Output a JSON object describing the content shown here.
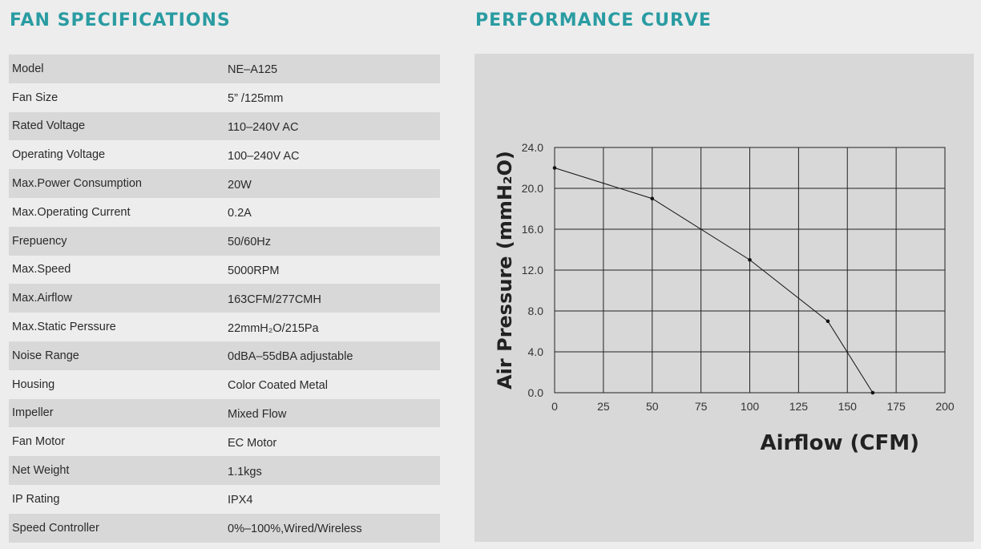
{
  "spec_title": "FAN SPECIFICATIONS",
  "perf_title": "PERFORMANCE CURVE",
  "specs": [
    {
      "label": "Model",
      "value": "NE–A125"
    },
    {
      "label": "Fan Size",
      "value": "5” /125mm"
    },
    {
      "label": "Rated Voltage",
      "value": "110–240V AC"
    },
    {
      "label": "Operating Voltage",
      "value": "100–240V AC"
    },
    {
      "label": "Max.Power Consumption",
      "value": "20W"
    },
    {
      "label": "Max.Operating Current",
      "value": "0.2A"
    },
    {
      "label": "Frepuency",
      "value": "50/60Hz"
    },
    {
      "label": "Max.Speed",
      "value": "5000RPM"
    },
    {
      "label": "Max.Airflow",
      "value": "163CFM/277CMH"
    },
    {
      "label": "Max.Static Perssure",
      "value": "22mmH₂O/215Pa"
    },
    {
      "label": "Noise Range",
      "value": "0dBA–55dBA adjustable"
    },
    {
      "label": "Housing",
      "value": "Color Coated Metal"
    },
    {
      "label": "Impeller",
      "value": "Mixed Flow"
    },
    {
      "label": "Fan Motor",
      "value": "EC Motor"
    },
    {
      "label": "Net Weight",
      "value": "1.1kgs"
    },
    {
      "label": "IP Rating",
      "value": "IPX4"
    },
    {
      "label": "Speed Controller",
      "value": "0%–100%,Wired/Wireless"
    }
  ],
  "chart_data": {
    "type": "line",
    "xlabel": "Airflow (CFM)",
    "ylabel": "Air Pressure (mmH₂O)",
    "xlim": [
      0,
      200
    ],
    "ylim": [
      0,
      24
    ],
    "x_ticks": [
      "0",
      "25",
      "50",
      "75",
      "100",
      "125",
      "150",
      "175",
      "200"
    ],
    "y_ticks": [
      "0.0",
      "4.0",
      "8.0",
      "12.0",
      "16.0",
      "20.0",
      "24.0"
    ],
    "grid": true,
    "series": [
      {
        "x": [
          0,
          50,
          100,
          140,
          163
        ],
        "y": [
          22,
          19,
          13,
          7,
          0
        ]
      }
    ]
  }
}
